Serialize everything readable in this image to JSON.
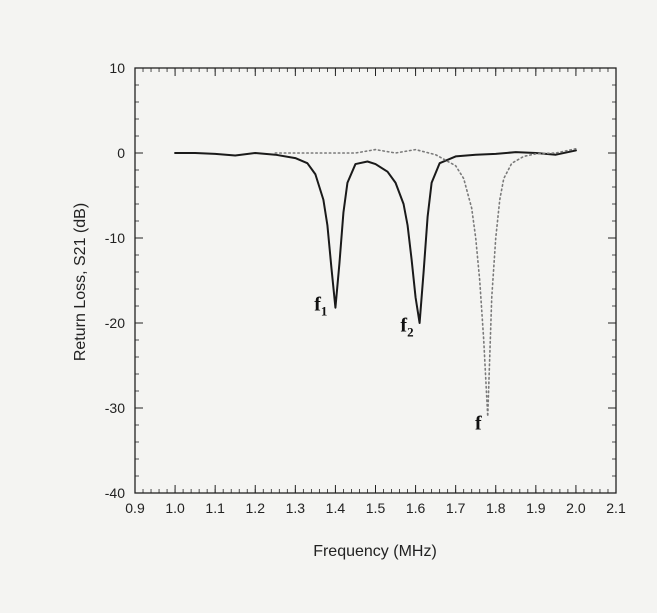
{
  "chart_data": {
    "type": "line",
    "xlabel": "Frequency (MHz)",
    "ylabel": "Return Loss, S21 (dB)",
    "xlim": [
      0.9,
      2.1
    ],
    "ylim": [
      -40,
      10
    ],
    "x_ticks": [
      0.9,
      1.0,
      1.1,
      1.2,
      1.3,
      1.4,
      1.5,
      1.6,
      1.7,
      1.8,
      1.9,
      2.0,
      2.1
    ],
    "x_tick_labels": [
      "0.9",
      "1.0",
      "1.1",
      "1.2",
      "1.3",
      "1.4",
      "1.5",
      "1.6",
      "1.7",
      "1.8",
      "1.9",
      "2.0",
      "2.1"
    ],
    "y_ticks": [
      10,
      0,
      -10,
      -20,
      -30,
      -40
    ],
    "y_tick_labels": [
      "10",
      "0",
      "-10",
      "-20",
      "-30",
      "-40"
    ],
    "grid": false,
    "legend": "none",
    "series": [
      {
        "style": "solid",
        "color": "#1a1a1a",
        "x": [
          1.0,
          1.05,
          1.1,
          1.15,
          1.2,
          1.25,
          1.3,
          1.33,
          1.35,
          1.37,
          1.38,
          1.39,
          1.4,
          1.41,
          1.42,
          1.43,
          1.45,
          1.48,
          1.5,
          1.53,
          1.55,
          1.57,
          1.58,
          1.59,
          1.6,
          1.61,
          1.62,
          1.63,
          1.64,
          1.66,
          1.7,
          1.75,
          1.8,
          1.85,
          1.9,
          1.95,
          2.0
        ],
        "y": [
          0,
          0,
          -0.1,
          -0.3,
          0,
          -0.2,
          -0.6,
          -1.2,
          -2.5,
          -5.5,
          -8.5,
          -13.5,
          -18.2,
          -13.0,
          -7.0,
          -3.5,
          -1.3,
          -1.0,
          -1.3,
          -2.2,
          -3.5,
          -6.0,
          -8.5,
          -12.5,
          -17.0,
          -20.0,
          -14.0,
          -7.5,
          -3.5,
          -1.2,
          -0.4,
          -0.2,
          -0.1,
          0.1,
          0,
          -0.2,
          0.3
        ]
      },
      {
        "style": "dotted",
        "color": "#7a7a7a",
        "x": [
          1.25,
          1.3,
          1.35,
          1.4,
          1.45,
          1.5,
          1.55,
          1.6,
          1.65,
          1.7,
          1.72,
          1.74,
          1.75,
          1.76,
          1.77,
          1.78,
          1.79,
          1.8,
          1.81,
          1.82,
          1.84,
          1.87,
          1.9,
          1.95,
          2.0
        ],
        "y": [
          0,
          0,
          0,
          0,
          0,
          0.4,
          0,
          0.4,
          -0.2,
          -1.5,
          -3.0,
          -6.5,
          -10.0,
          -15.0,
          -22.0,
          -31.0,
          -17.0,
          -10.0,
          -5.5,
          -3.0,
          -1.2,
          -0.4,
          -0.1,
          0,
          0.5
        ]
      }
    ],
    "annotations": [
      {
        "main": "f",
        "sub": "1",
        "x": 1.38,
        "y": -18.5
      },
      {
        "main": "f",
        "sub": "2",
        "x": 1.595,
        "y": -21.0
      },
      {
        "main": "f",
        "sub": "",
        "x": 1.765,
        "y": -32.5
      }
    ]
  }
}
